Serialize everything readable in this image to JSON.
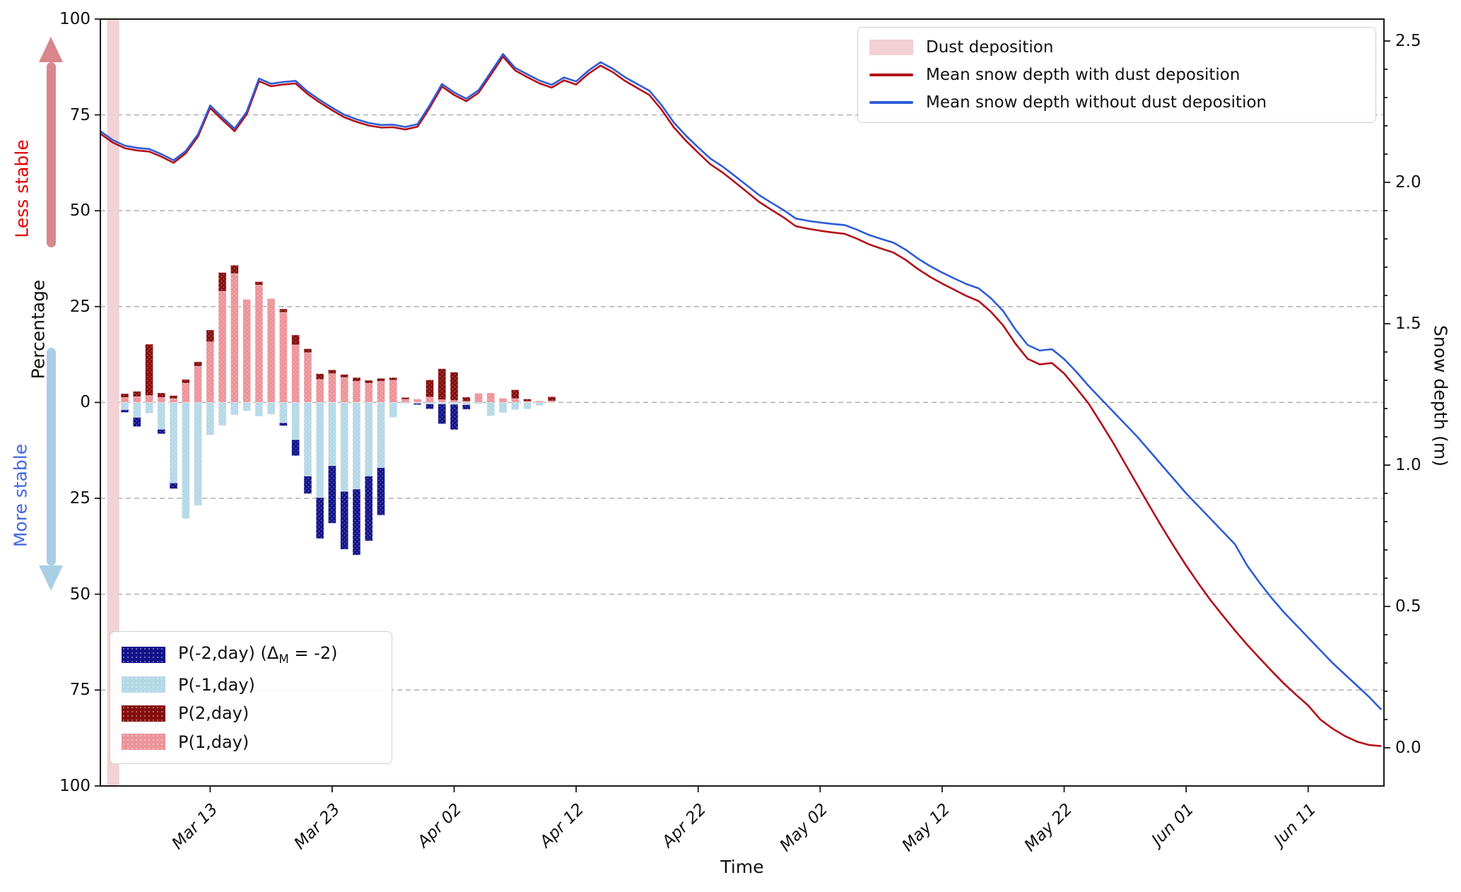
{
  "figure": {
    "x_axis": {
      "title": "Time",
      "tick_labels": [
        "Mar 13",
        "Mar 23",
        "Apr 02",
        "Apr 12",
        "Apr 22",
        "May 02",
        "May 12",
        "May 22",
        "Jun 01",
        "Jun 11"
      ]
    },
    "left_axis": {
      "title": "Percentage",
      "tick_labels": [
        "100",
        "75",
        "50",
        "25",
        "0",
        "25",
        "50",
        "75",
        "100"
      ],
      "annotation_top": "Less stable",
      "annotation_bottom": "More stable"
    },
    "right_axis": {
      "title": "Snow depth (m)",
      "tick_labels": [
        "2.5",
        "2.0",
        "1.5",
        "1.0",
        "0.5",
        "0.0"
      ]
    },
    "legend_top": {
      "items": [
        {
          "label": "Dust deposition"
        },
        {
          "label": "Mean snow depth with dust deposition"
        },
        {
          "label": "Mean snow depth without dust deposition"
        }
      ]
    },
    "legend_bottom": {
      "items": [
        {
          "label_prefix": "P(-2,day) (Δ",
          "label_sub": "M",
          "label_suffix": " = -2)"
        },
        {
          "label": "P(-1,day)"
        },
        {
          "label": "P(2,day)"
        },
        {
          "label": "P(1,day)"
        }
      ]
    }
  },
  "chart_data": {
    "type": "composite",
    "subtypes": [
      "bar-stacked-diverging",
      "line",
      "vertical-band"
    ],
    "title": "",
    "xlabel": "Time",
    "x_range_days": [
      "Mar 04",
      "Jun 17"
    ],
    "x_tick_days": [
      "Mar 13",
      "Mar 23",
      "Apr 02",
      "Apr 12",
      "Apr 22",
      "May 02",
      "May 12",
      "May 22",
      "Jun 01",
      "Jun 11"
    ],
    "left_axis": {
      "label": "Percentage",
      "range": [
        -100,
        100
      ],
      "gridlines_pct": [
        75,
        50,
        25,
        0,
        -25,
        -50,
        -75
      ],
      "grid": "dashed"
    },
    "right_axis": {
      "label": "Snow depth (m)",
      "range_m": [
        0.0,
        2.5
      ],
      "ticks": [
        0.0,
        0.5,
        1.0,
        1.5,
        2.0,
        2.5
      ]
    },
    "legend_position": {
      "lines": "upper right",
      "bars": "lower left"
    },
    "dust_band": {
      "label": "Dust deposition",
      "start_day": 0.55,
      "end_day": 1.55,
      "start_date": "Mar 04",
      "note": "vertical band, full height"
    },
    "bars": {
      "note": "daily stacked percentage bars; p1/p2 above zero, m1/m2 below zero",
      "start_day_offset": 2,
      "dates": [
        "Mar 06",
        "Mar 07",
        "Mar 08",
        "Mar 09",
        "Mar 10",
        "Mar 11",
        "Mar 12",
        "Mar 13",
        "Mar 14",
        "Mar 15",
        "Mar 16",
        "Mar 17",
        "Mar 18",
        "Mar 19",
        "Mar 20",
        "Mar 21",
        "Mar 22",
        "Mar 23",
        "Mar 24",
        "Mar 25",
        "Mar 26",
        "Mar 27",
        "Mar 28",
        "Mar 29",
        "Mar 30",
        "Mar 31",
        "Apr 01",
        "Apr 02",
        "Apr 03",
        "Apr 04",
        "Apr 05",
        "Apr 06",
        "Apr 07",
        "Apr 08",
        "Apr 09",
        "Apr 10"
      ],
      "series": [
        {
          "name": "P(1,day)",
          "stack": "up",
          "values": [
            1.3,
            1.5,
            1.8,
            1.3,
            1.0,
            5.0,
            9.4,
            15.8,
            29.0,
            33.6,
            26.9,
            30.6,
            27.1,
            23.5,
            15.0,
            13.0,
            6.0,
            7.5,
            6.5,
            5.5,
            5.0,
            5.5,
            5.8,
            0.8,
            0.9,
            1.4,
            0.7,
            0.5,
            0.3,
            2.4,
            2.5,
            1.1,
            1.0,
            0.3,
            0.4,
            0.4
          ]
        },
        {
          "name": "P(2,day)",
          "stack": "up",
          "values": [
            1.0,
            1.4,
            13.4,
            1.2,
            0.8,
            1.0,
            1.2,
            3.1,
            4.9,
            2.2,
            0,
            0.9,
            0,
            0.9,
            2.6,
            1.0,
            1.5,
            1.0,
            0.8,
            1.0,
            0.8,
            0.8,
            0.7,
            0.5,
            0,
            4.5,
            8.1,
            7.4,
            1.1,
            0,
            0,
            0,
            2.3,
            0.6,
            0,
            1.1
          ]
        },
        {
          "name": "P(-1,day)",
          "stack": "down",
          "values": [
            1.9,
            3.9,
            2.8,
            7.0,
            21.0,
            30.3,
            26.9,
            8.5,
            6.0,
            3.3,
            2.2,
            3.6,
            3.1,
            5.3,
            9.7,
            19.2,
            24.8,
            16.5,
            23.2,
            22.6,
            19.2,
            17.0,
            3.9,
            0.3,
            0.2,
            0.4,
            0.4,
            0.5,
            0.6,
            0.4,
            3.5,
            2.7,
            1.9,
            1.7,
            0.8,
            0.1
          ]
        },
        {
          "name": "P(-2,day) (ΔM = -2)",
          "stack": "down",
          "values": [
            0.7,
            2.4,
            0,
            1.2,
            1.5,
            0,
            0,
            0,
            0,
            0,
            0,
            0,
            0,
            0.8,
            4.2,
            4.6,
            10.7,
            15.0,
            15.1,
            17.2,
            16.9,
            12.4,
            0,
            0,
            0.4,
            1.3,
            5.2,
            6.6,
            1.2,
            0,
            0,
            0,
            0,
            0,
            0,
            0
          ]
        }
      ]
    },
    "lines": {
      "note": "daily mean snow depth in metres, right axis",
      "start_date": "Mar 04",
      "step_days": 1,
      "series": [
        {
          "name": "Mean snow depth without dust deposition",
          "values": [
            2.181,
            2.15,
            2.13,
            2.122,
            2.118,
            2.1,
            2.078,
            2.111,
            2.17,
            2.272,
            2.23,
            2.19,
            2.25,
            2.367,
            2.349,
            2.355,
            2.359,
            2.321,
            2.291,
            2.264,
            2.239,
            2.223,
            2.21,
            2.203,
            2.204,
            2.196,
            2.206,
            2.273,
            2.348,
            2.318,
            2.296,
            2.326,
            2.389,
            2.454,
            2.405,
            2.382,
            2.36,
            2.345,
            2.371,
            2.357,
            2.395,
            2.425,
            2.402,
            2.372,
            2.348,
            2.324,
            2.273,
            2.212,
            2.165,
            2.124,
            2.084,
            2.056,
            2.023,
            1.989,
            1.955,
            1.928,
            1.902,
            1.872,
            1.864,
            1.858,
            1.853,
            1.849,
            1.833,
            1.814,
            1.8,
            1.787,
            1.762,
            1.731,
            1.704,
            1.681,
            1.66,
            1.64,
            1.625,
            1.59,
            1.545,
            1.48,
            1.425,
            1.405,
            1.41,
            1.375,
            1.33,
            1.28,
            1.235,
            1.19,
            1.145,
            1.1,
            1.05,
            1.0,
            0.95,
            0.9,
            0.855,
            0.81,
            0.765,
            0.72,
            0.645,
            0.585,
            0.53,
            0.48,
            0.435,
            0.39,
            0.345,
            0.3,
            0.26,
            0.22,
            0.18,
            0.135
          ]
        },
        {
          "name": "Mean snow depth with dust deposition",
          "values": [
            2.172,
            2.141,
            2.121,
            2.113,
            2.109,
            2.091,
            2.069,
            2.103,
            2.162,
            2.263,
            2.221,
            2.181,
            2.241,
            2.358,
            2.34,
            2.346,
            2.35,
            2.312,
            2.282,
            2.255,
            2.23,
            2.214,
            2.201,
            2.194,
            2.195,
            2.187,
            2.197,
            2.264,
            2.339,
            2.309,
            2.287,
            2.317,
            2.38,
            2.445,
            2.396,
            2.372,
            2.35,
            2.335,
            2.361,
            2.346,
            2.384,
            2.413,
            2.39,
            2.359,
            2.334,
            2.309,
            2.257,
            2.195,
            2.147,
            2.105,
            2.064,
            2.035,
            2.001,
            1.966,
            1.931,
            1.903,
            1.876,
            1.845,
            1.836,
            1.829,
            1.823,
            1.818,
            1.801,
            1.781,
            1.766,
            1.752,
            1.726,
            1.694,
            1.666,
            1.642,
            1.62,
            1.598,
            1.58,
            1.542,
            1.494,
            1.43,
            1.376,
            1.356,
            1.361,
            1.324,
            1.272,
            1.218,
            1.15,
            1.08,
            1.005,
            0.93,
            0.855,
            0.782,
            0.712,
            0.645,
            0.582,
            0.522,
            0.468,
            0.415,
            0.365,
            0.318,
            0.272,
            0.228,
            0.188,
            0.15,
            0.1,
            0.068,
            0.042,
            0.022,
            0.01,
            0.006
          ]
        }
      ]
    },
    "colors": {
      "line_with_dust": "#b30f18",
      "line_without_dust": "#2e5cd8",
      "bar_p1": "#ec949a",
      "bar_p2": "#860d0d",
      "bar_m1": "#b5d8e6",
      "bar_m2": "#131389",
      "dust": "#f2d0d4",
      "arrow_up": "#d9868d",
      "arrow_down": "#a9cfe5",
      "less_stable_text": "#e00007",
      "more_stable_text": "#4169e1",
      "grid": "#b0b0b0",
      "spine": "#1a1a1a"
    }
  }
}
